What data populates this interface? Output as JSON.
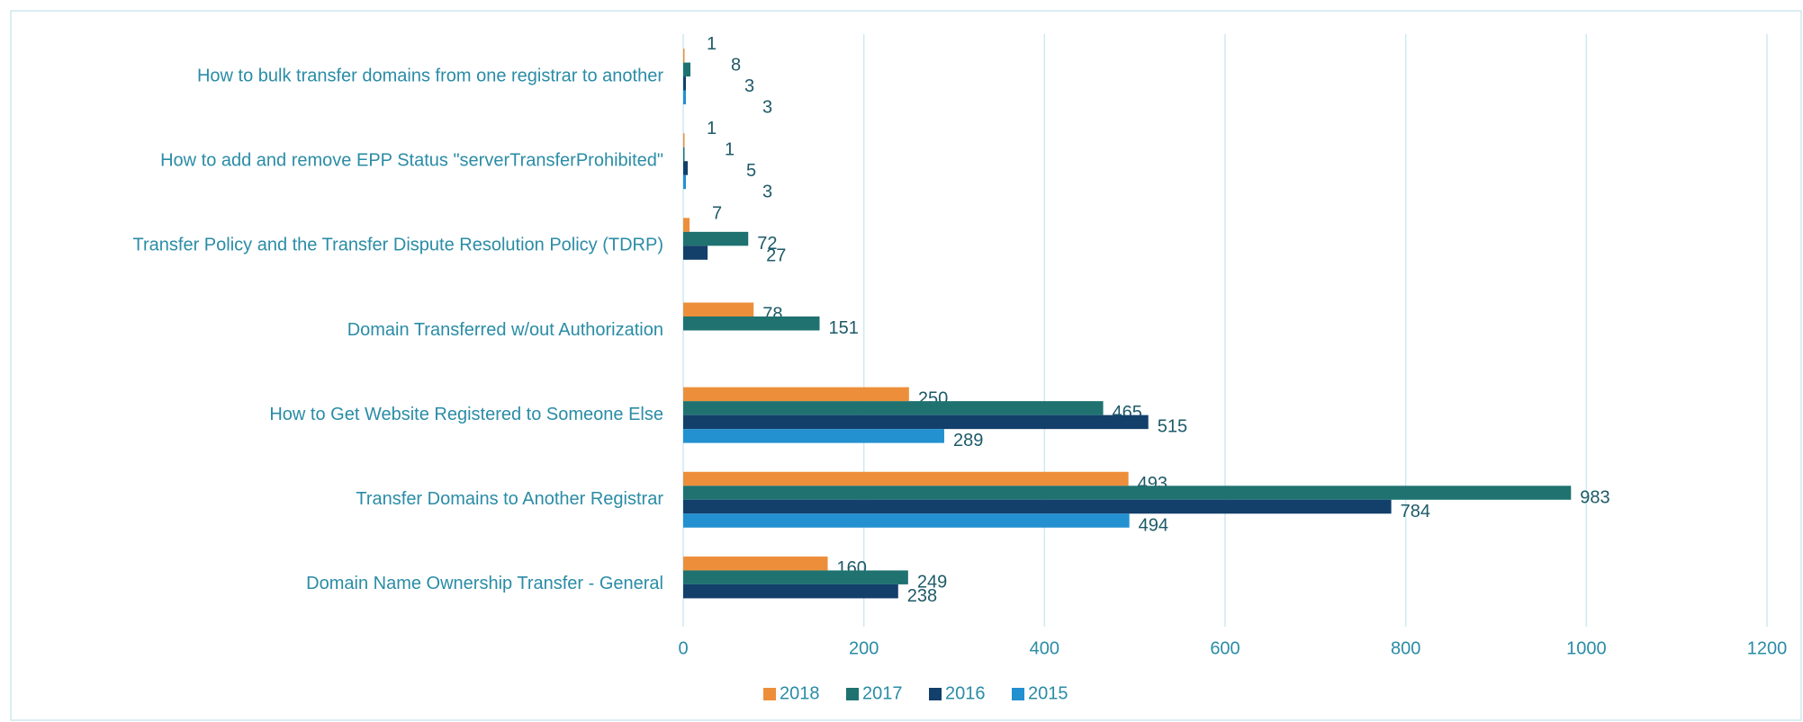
{
  "chart_data": {
    "type": "bar",
    "orientation": "horizontal",
    "categories": [
      "How to bulk transfer domains from one registrar to another",
      "How to add and remove EPP Status \"serverTransferProhibited\"",
      "Transfer Policy and the Transfer Dispute Resolution Policy (TDRP)",
      "Domain Transferred w/out Authorization ",
      "How to Get Website Registered to Someone Else ",
      "Transfer Domains to Another Registrar",
      "Domain Name Ownership Transfer - General"
    ],
    "series": [
      {
        "name": "2018",
        "color": "#ed8f3a",
        "values": [
          1,
          1,
          7,
          78,
          250,
          493,
          160
        ]
      },
      {
        "name": "2017",
        "color": "#1f7270",
        "values": [
          8,
          1,
          72,
          151,
          465,
          983,
          249
        ]
      },
      {
        "name": "2016",
        "color": "#133f6b",
        "values": [
          3,
          5,
          27,
          null,
          515,
          784,
          238
        ]
      },
      {
        "name": "2015",
        "color": "#2390d0",
        "values": [
          3,
          3,
          null,
          null,
          289,
          494,
          null
        ]
      }
    ],
    "xlim": [
      0,
      1200
    ],
    "xticks": [
      0,
      200,
      400,
      600,
      800,
      1000,
      1200
    ],
    "grid": true,
    "legend": "bottom"
  }
}
